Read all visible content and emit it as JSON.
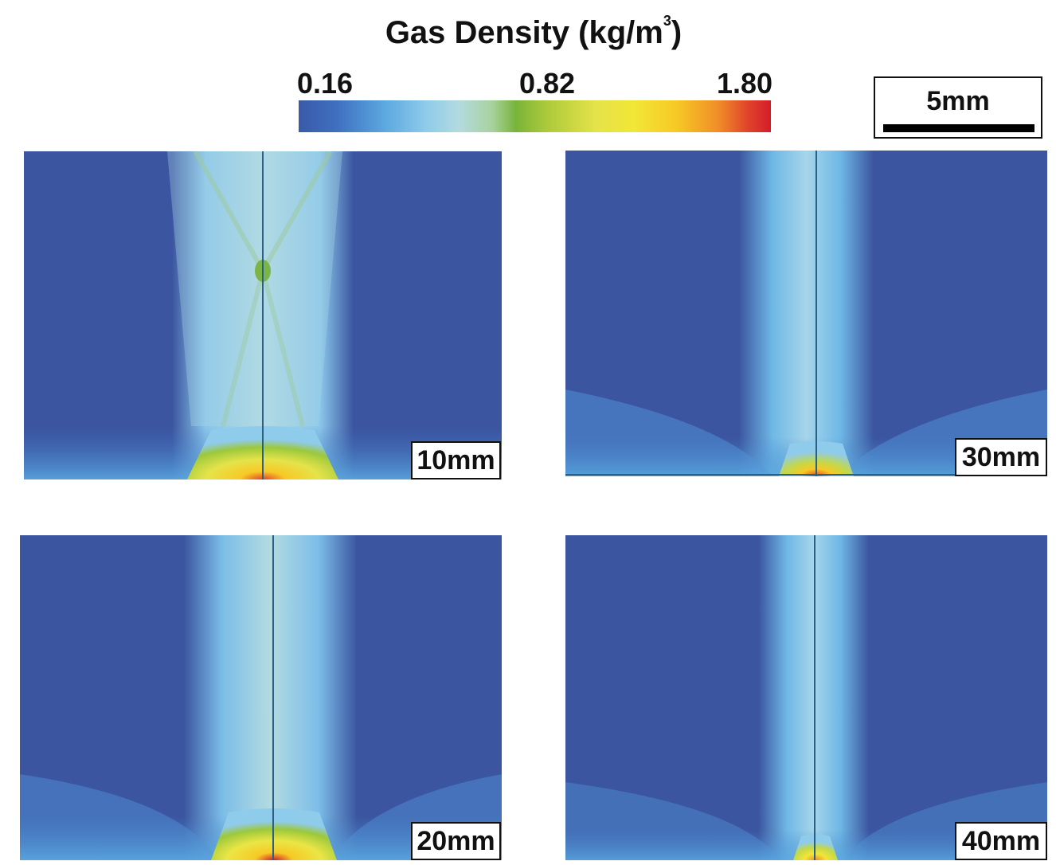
{
  "figure": {
    "title_text": "Gas Density (kg/m",
    "title_superscript": "3",
    "title_close": ")",
    "colorbar": {
      "min_label": "0.16",
      "mid_label": "0.82",
      "max_label": "1.80",
      "colors": [
        "#3a5aa8",
        "#5aa7df",
        "#b3dbe0",
        "#78b43a",
        "#f2e636",
        "#f08c28",
        "#d41c2a"
      ]
    },
    "scale_bar_label": "5mm",
    "panels": [
      {
        "label": "10mm"
      },
      {
        "label": "30mm"
      },
      {
        "label": "20mm"
      },
      {
        "label": "40mm"
      }
    ]
  }
}
